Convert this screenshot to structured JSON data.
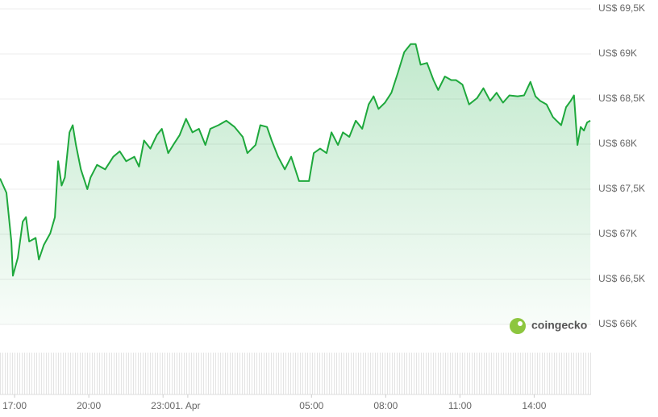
{
  "chart_data": {
    "type": "line",
    "watermark": "coingecko",
    "x": [
      16.41,
      16.67,
      16.87,
      16.93,
      17.13,
      17.33,
      17.46,
      17.59,
      17.85,
      17.98,
      18.18,
      18.44,
      18.63,
      18.76,
      18.9,
      19.03,
      19.22,
      19.35,
      19.48,
      19.68,
      19.94,
      20.07,
      20.33,
      20.66,
      20.99,
      21.25,
      21.51,
      21.84,
      22.03,
      22.23,
      22.49,
      22.75,
      22.95,
      23.21,
      23.41,
      23.67,
      23.93,
      24.19,
      24.45,
      24.71,
      24.91,
      25.24,
      25.56,
      25.89,
      26.22,
      26.41,
      26.74,
      26.93,
      27.2,
      27.39,
      27.65,
      27.92,
      28.18,
      28.5,
      28.9,
      29.09,
      29.35,
      29.61,
      29.81,
      30.07,
      30.27,
      30.53,
      30.79,
      31.05,
      31.31,
      31.51,
      31.71,
      31.97,
      32.23,
      32.49,
      32.75,
      33.01,
      33.21,
      33.41,
      33.67,
      33.93,
      34.12,
      34.39,
      34.65,
      34.84,
      35.1,
      35.37,
      35.69,
      35.95,
      36.22,
      36.48,
      36.74,
      37,
      37.33,
      37.59,
      37.85,
      38.05,
      38.24,
      38.5,
      38.76,
      39.09,
      39.29,
      39.48,
      39.61,
      39.75,
      39.88,
      40.01,
      40.14,
      40.27
    ],
    "series": [
      {
        "color": "#1ea83c",
        "values": [
          67620,
          67460,
          66920,
          66540,
          66740,
          67140,
          67190,
          66920,
          66960,
          66720,
          66880,
          67010,
          67190,
          67810,
          67540,
          67630,
          68130,
          68210,
          67990,
          67720,
          67500,
          67630,
          67770,
          67720,
          67860,
          67920,
          67810,
          67860,
          67750,
          68040,
          67950,
          68100,
          68170,
          67900,
          67990,
          68100,
          68280,
          68130,
          68170,
          67990,
          68170,
          68210,
          68260,
          68190,
          68080,
          67900,
          67990,
          68210,
          68190,
          68040,
          67860,
          67720,
          67860,
          67590,
          67590,
          67900,
          67950,
          67900,
          68130,
          67990,
          68130,
          68080,
          68260,
          68170,
          68440,
          68530,
          68390,
          68460,
          68570,
          68790,
          69020,
          69110,
          69110,
          68880,
          68900,
          68710,
          68600,
          68750,
          68710,
          68710,
          68660,
          68440,
          68510,
          68620,
          68480,
          68570,
          68460,
          68540,
          68530,
          68540,
          68690,
          68530,
          68480,
          68440,
          68300,
          68210,
          68410,
          68480,
          68540,
          67990,
          68190,
          68150,
          68240,
          68260
        ]
      }
    ],
    "xlim": [
      16.41,
      40.3
    ],
    "xticks": [
      {
        "value": 17,
        "label": "17:00"
      },
      {
        "value": 20,
        "label": "20:00"
      },
      {
        "value": 23,
        "label": "23:00"
      },
      {
        "value": 24,
        "label": "1. Apr"
      },
      {
        "value": 29,
        "label": "05:00"
      },
      {
        "value": 32,
        "label": "08:00"
      },
      {
        "value": 35,
        "label": "11:00"
      },
      {
        "value": 38,
        "label": "14:00"
      }
    ],
    "ylim": [
      66000,
      69500
    ],
    "yticks": [
      {
        "value": 66000,
        "label": "US$ 66K"
      },
      {
        "value": 66500,
        "label": "US$ 66,5K"
      },
      {
        "value": 67000,
        "label": "US$ 67K"
      },
      {
        "value": 67500,
        "label": "US$ 67,5K"
      },
      {
        "value": 68000,
        "label": "US$ 68K"
      },
      {
        "value": 68500,
        "label": "US$ 68,5K"
      },
      {
        "value": 69000,
        "label": "US$ 69K"
      },
      {
        "value": 69500,
        "label": "US$ 69,5K"
      }
    ],
    "grid": true
  }
}
